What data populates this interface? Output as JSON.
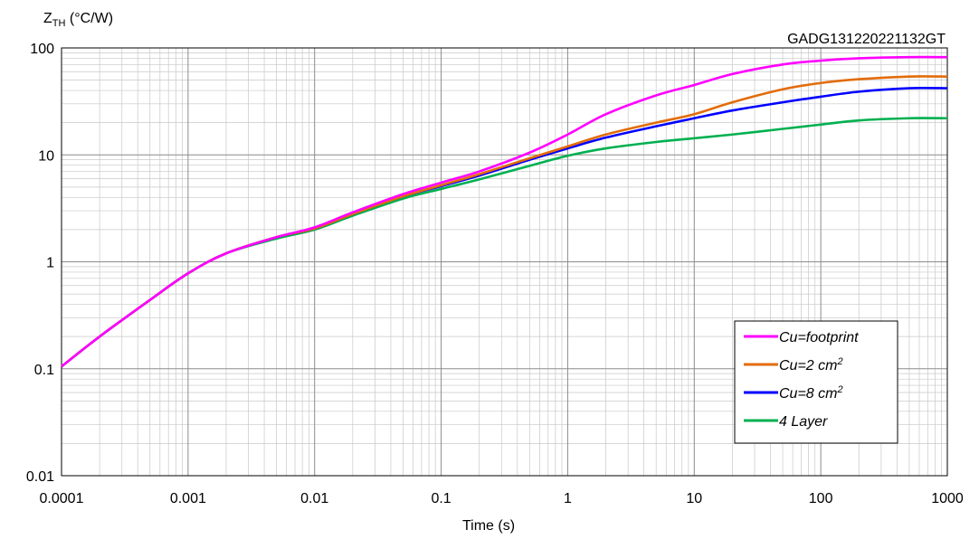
{
  "chart_data": {
    "type": "line",
    "title": "",
    "code": "GADG131220221132GT",
    "ylabel_main": "Z",
    "ylabel_sub": "TH",
    "ylabel_unit": " (°C/W)",
    "xlabel": "Time (s)",
    "x_scale": "log",
    "y_scale": "log",
    "xlim": [
      0.0001,
      1000
    ],
    "ylim": [
      0.01,
      100
    ],
    "x_ticks": [
      "0.0001",
      "0.001",
      "0.01",
      "0.1",
      "1",
      "10",
      "100",
      "1000"
    ],
    "y_ticks": [
      "0.01",
      "0.1",
      "1",
      "10",
      "100"
    ],
    "grid": true,
    "legend_position": "lower-right",
    "series": [
      {
        "name": "Cu=footprint",
        "legend_main": "Cu=footprint",
        "legend_sup": "",
        "color": "#ff00ff",
        "x": [
          0.0001,
          0.0002,
          0.0005,
          0.001,
          0.002,
          0.005,
          0.01,
          0.02,
          0.05,
          0.1,
          0.2,
          0.5,
          1,
          2,
          5,
          10,
          20,
          50,
          100,
          200,
          500,
          1000
        ],
        "y": [
          0.105,
          0.2,
          0.44,
          0.78,
          1.2,
          1.7,
          2.1,
          2.9,
          4.3,
          5.5,
          7.0,
          10.5,
          15.5,
          24,
          36,
          45,
          57,
          70,
          76,
          80,
          82,
          82
        ]
      },
      {
        "name": "Cu=2 cm2",
        "legend_main": "Cu=2 cm",
        "legend_sup": "2",
        "color": "#e36c0a",
        "x": [
          0.0001,
          0.0002,
          0.0005,
          0.001,
          0.002,
          0.005,
          0.01,
          0.02,
          0.05,
          0.1,
          0.2,
          0.5,
          1,
          2,
          5,
          10,
          20,
          50,
          100,
          200,
          500,
          1000
        ],
        "y": [
          0.105,
          0.2,
          0.44,
          0.78,
          1.2,
          1.7,
          2.05,
          2.8,
          4.1,
          5.2,
          6.6,
          9.3,
          12,
          15.5,
          20,
          24,
          31,
          41,
          47,
          51,
          54,
          54
        ]
      },
      {
        "name": "Cu=8 cm2",
        "legend_main": "Cu=8 cm",
        "legend_sup": "2",
        "color": "#0000ff",
        "x": [
          0.0001,
          0.0002,
          0.0005,
          0.001,
          0.002,
          0.005,
          0.01,
          0.02,
          0.05,
          0.1,
          0.2,
          0.5,
          1,
          2,
          5,
          10,
          20,
          50,
          100,
          200,
          500,
          1000
        ],
        "y": [
          0.105,
          0.2,
          0.44,
          0.78,
          1.2,
          1.7,
          2.05,
          2.8,
          4.1,
          5.1,
          6.4,
          9.0,
          11.5,
          14.5,
          18.5,
          22,
          26,
          31,
          35,
          39,
          42,
          42
        ]
      },
      {
        "name": "4 Layer",
        "legend_main": "4 Layer",
        "legend_sup": "",
        "color": "#00b050",
        "x": [
          0.0001,
          0.0002,
          0.0005,
          0.001,
          0.002,
          0.005,
          0.01,
          0.02,
          0.05,
          0.1,
          0.2,
          0.5,
          1,
          2,
          5,
          10,
          20,
          50,
          100,
          200,
          500,
          1000
        ],
        "y": [
          0.105,
          0.2,
          0.44,
          0.78,
          1.2,
          1.65,
          2.0,
          2.7,
          3.9,
          4.8,
          5.9,
          7.9,
          9.8,
          11.5,
          13.2,
          14.3,
          15.5,
          17.5,
          19.2,
          21,
          22,
          22
        ]
      }
    ]
  }
}
